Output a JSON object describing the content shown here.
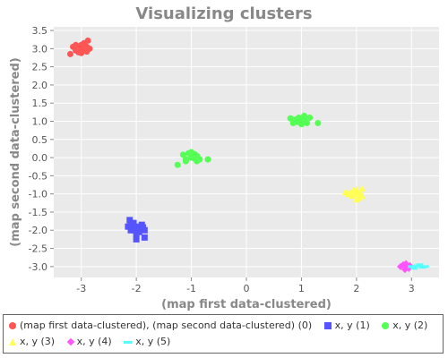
{
  "chart_data": {
    "type": "scatter",
    "title": "Visualizing clusters",
    "xlabel": "(map first data-clustered)",
    "ylabel": "(map second data-clustered)",
    "xlim": [
      -3.5,
      3.5
    ],
    "ylim": [
      -3.3,
      3.6
    ],
    "x_ticks": [
      -3,
      -2,
      -1,
      0,
      1,
      2,
      3
    ],
    "y_ticks": [
      -3.0,
      -2.5,
      -2.0,
      -1.5,
      -1.0,
      -0.5,
      0.0,
      0.5,
      1.0,
      1.5,
      2.0,
      2.5,
      3.0,
      3.5
    ],
    "x_tick_labels": [
      "-3",
      "-2",
      "-1",
      "0",
      "1",
      "2",
      "3"
    ],
    "y_tick_labels": [
      "-3.0",
      "-2.5",
      "-2.0",
      "-1.5",
      "-1.0",
      "-0.5",
      "0.0",
      "0.5",
      "1.0",
      "1.5",
      "2.0",
      "2.5",
      "3.0",
      "3.5"
    ],
    "grid": true,
    "legend_placement": "bottom",
    "series": [
      {
        "name": "(map first data-clustered), (map second data-clustered) (0)",
        "color": "#ff5555",
        "marker": "circle",
        "points": [
          [
            -3.0,
            3.0
          ],
          [
            -2.9,
            3.05
          ],
          [
            -3.1,
            2.95
          ],
          [
            -2.95,
            3.15
          ],
          [
            -3.05,
            2.9
          ],
          [
            -2.85,
            3.0
          ],
          [
            -3.15,
            3.05
          ],
          [
            -2.9,
            2.92
          ],
          [
            -3.0,
            3.1
          ],
          [
            -2.95,
            2.98
          ],
          [
            -3.05,
            3.02
          ],
          [
            -3.2,
            2.85
          ],
          [
            -2.88,
            3.22
          ],
          [
            -3.1,
            3.1
          ],
          [
            -2.92,
            2.95
          ],
          [
            -3.0,
            2.88
          ],
          [
            -2.97,
            3.06
          ]
        ]
      },
      {
        "name": "x, y (1)",
        "color": "#5555ff",
        "marker": "square",
        "points": [
          [
            -2.0,
            -1.95
          ],
          [
            -1.9,
            -1.85
          ],
          [
            -2.1,
            -2.0
          ],
          [
            -2.05,
            -1.8
          ],
          [
            -1.95,
            -2.05
          ],
          [
            -1.85,
            -2.0
          ],
          [
            -2.15,
            -1.9
          ],
          [
            -2.0,
            -2.1
          ],
          [
            -1.9,
            -1.95
          ],
          [
            -2.1,
            -1.85
          ],
          [
            -2.0,
            -2.25
          ],
          [
            -1.85,
            -2.2
          ],
          [
            -2.12,
            -1.72
          ],
          [
            -1.95,
            -1.9
          ],
          [
            -2.05,
            -2.0
          ],
          [
            -1.88,
            -1.92
          ]
        ]
      },
      {
        "name": "x, y (2)",
        "color": "#55ff55",
        "marker": "circle",
        "points": [
          [
            -1.0,
            0.0
          ],
          [
            -0.9,
            0.05
          ],
          [
            -1.1,
            -0.05
          ],
          [
            -0.95,
            0.1
          ],
          [
            -1.05,
            0.12
          ],
          [
            -0.85,
            -0.05
          ],
          [
            -1.15,
            0.08
          ],
          [
            -0.9,
            -0.1
          ],
          [
            -1.0,
            0.15
          ],
          [
            -0.7,
            -0.05
          ],
          [
            -1.25,
            -0.2
          ],
          [
            -1.1,
            -0.1
          ],
          [
            -0.95,
            -0.02
          ],
          [
            1.0,
            1.0
          ],
          [
            0.9,
            1.05
          ],
          [
            1.1,
            0.95
          ],
          [
            0.95,
            1.1
          ],
          [
            1.05,
            1.05
          ],
          [
            0.85,
            0.95
          ],
          [
            1.15,
            1.1
          ],
          [
            0.9,
            1.0
          ],
          [
            1.0,
            0.92
          ],
          [
            1.3,
            0.95
          ],
          [
            0.8,
            1.08
          ],
          [
            1.05,
            1.15
          ],
          [
            0.92,
            0.98
          ]
        ]
      },
      {
        "name": "x, y (3)",
        "color": "#ffff55",
        "marker": "triangle",
        "points": [
          [
            2.0,
            -1.0
          ],
          [
            1.9,
            -0.95
          ],
          [
            2.1,
            -1.05
          ],
          [
            1.95,
            -0.9
          ],
          [
            2.05,
            -1.1
          ],
          [
            1.85,
            -1.0
          ],
          [
            2.1,
            -0.85
          ],
          [
            2.0,
            -1.15
          ],
          [
            1.92,
            -1.05
          ],
          [
            2.07,
            -0.97
          ],
          [
            1.8,
            -0.95
          ],
          [
            2.0,
            -0.88
          ]
        ]
      },
      {
        "name": "x, y (4)",
        "color": "#ff55ff",
        "marker": "diamond",
        "points": [
          [
            2.9,
            -3.0
          ],
          [
            2.85,
            -2.95
          ],
          [
            2.95,
            -3.05
          ],
          [
            2.8,
            -3.0
          ],
          [
            2.9,
            -2.92
          ],
          [
            2.97,
            -2.98
          ],
          [
            2.88,
            -3.08
          ]
        ]
      },
      {
        "name": "x, y (5)",
        "color": "#55ffff",
        "marker": "dash",
        "points": [
          [
            3.0,
            -3.0
          ],
          [
            3.1,
            -2.98
          ],
          [
            3.2,
            -3.02
          ],
          [
            3.05,
            -3.05
          ],
          [
            3.15,
            -2.95
          ],
          [
            3.25,
            -3.0
          ]
        ]
      }
    ]
  }
}
